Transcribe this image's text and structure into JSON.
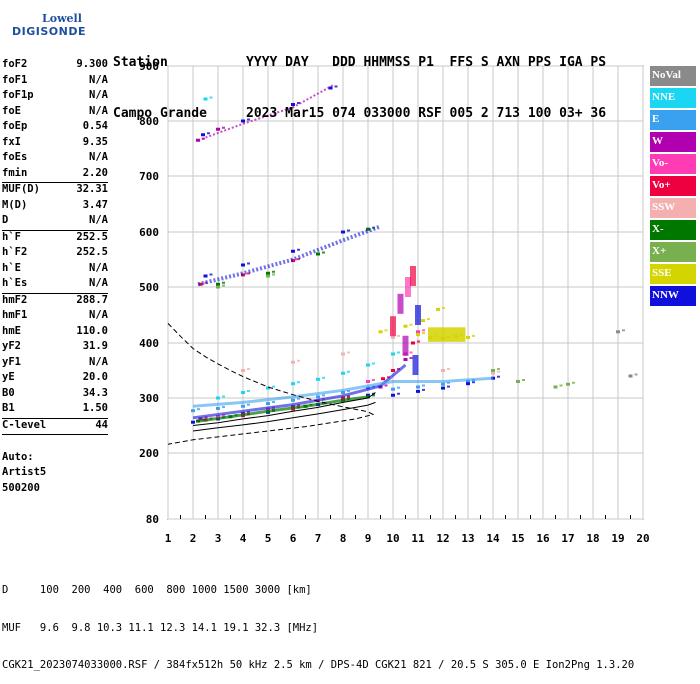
{
  "logo": {
    "line1": "Lowell",
    "line2": "DIGISONDE"
  },
  "header": {
    "line1": "Station          YYYY DAY   DDD HHMMSS P1  FFS S AXN PPS IGA PS",
    "line2": "Campo Grande     2023 Mar15 074 033000 RSF 005 2 713 100 03+ 36"
  },
  "params": [
    {
      "k": "foF2",
      "v": "9.300"
    },
    {
      "k": "foF1",
      "v": "N/A"
    },
    {
      "k": "foF1p",
      "v": "N/A"
    },
    {
      "k": "foE",
      "v": "N/A"
    },
    {
      "k": "foEp",
      "v": "0.54"
    },
    {
      "k": "fxI",
      "v": "9.35"
    },
    {
      "k": "foEs",
      "v": "N/A"
    },
    {
      "k": "fmin",
      "v": "2.20",
      "sep": true
    },
    {
      "k": "MUF(D)",
      "v": "32.31"
    },
    {
      "k": "M(D)",
      "v": "3.47"
    },
    {
      "k": "D",
      "v": "N/A",
      "sep": true
    },
    {
      "k": "h`F",
      "v": "252.5"
    },
    {
      "k": "h`F2",
      "v": "252.5"
    },
    {
      "k": "h`E",
      "v": "N/A"
    },
    {
      "k": "h`Es",
      "v": "N/A",
      "sep": true
    },
    {
      "k": "hmF2",
      "v": "288.7"
    },
    {
      "k": "hmF1",
      "v": "N/A"
    },
    {
      "k": "hmE",
      "v": "110.0"
    },
    {
      "k": "yF2",
      "v": "31.9"
    },
    {
      "k": "yF1",
      "v": "N/A"
    },
    {
      "k": "yE",
      "v": "20.0"
    },
    {
      "k": "B0",
      "v": "34.3"
    },
    {
      "k": "B1",
      "v": "1.50",
      "sep": true
    },
    {
      "k": "C-level",
      "v": "44",
      "sep": true
    },
    {
      "k": "",
      "v": ""
    },
    {
      "k": "Auto:",
      "v": ""
    },
    {
      "k": "Artist5",
      "v": ""
    },
    {
      "k": "500200",
      "v": ""
    }
  ],
  "legend": [
    {
      "label": "NoVal",
      "color": "#8a8a8a"
    },
    {
      "label": "NNE",
      "color": "#1ad6f2"
    },
    {
      "label": "E",
      "color": "#3aa0f0"
    },
    {
      "label": "W",
      "color": "#b000b0"
    },
    {
      "label": "Vo-",
      "color": "#ff3cb4"
    },
    {
      "label": "Vo+",
      "color": "#ee0040"
    },
    {
      "label": "SSW",
      "color": "#f4b0b0"
    },
    {
      "label": "X-",
      "color": "#007800"
    },
    {
      "label": "X+",
      "color": "#78b050"
    },
    {
      "label": "SSE",
      "color": "#d4d400"
    },
    {
      "label": "NNW",
      "color": "#1010dc"
    }
  ],
  "footer": {
    "line1": "D     100  200  400  600  800 1000 1500 3000 [km]",
    "line2": "MUF   9.6  9.8 10.3 11.1 12.3 14.1 19.1 32.3 [MHz]",
    "line3": "CGK21_2023074033000.RSF / 384fx512h 50 kHz 2.5 km / DPS-4D CGK21 821 / 20.5 S 305.0 E Ion2Png 1.3.20"
  },
  "chart_data": {
    "type": "scatter",
    "xlabel": "",
    "ylabel": "",
    "xlim": [
      1,
      20
    ],
    "ylim": [
      80,
      900
    ],
    "x_ticks": [
      1,
      2,
      3,
      4,
      5,
      6,
      7,
      8,
      9,
      10,
      11,
      12,
      13,
      14,
      15,
      16,
      17,
      18,
      19,
      20
    ],
    "y_ticks": [
      80,
      200,
      300,
      400,
      500,
      600,
      700,
      800,
      900
    ],
    "grid": true,
    "series": [
      {
        "name": "E",
        "color": "#3aa0f0",
        "values": [
          [
            2,
            277
          ],
          [
            3,
            281
          ],
          [
            4,
            285
          ],
          [
            5,
            290
          ],
          [
            6,
            296
          ],
          [
            7,
            302
          ],
          [
            8,
            310
          ],
          [
            9,
            318
          ],
          [
            10,
            316
          ],
          [
            11,
            320
          ],
          [
            12,
            325
          ],
          [
            13,
            330
          ]
        ]
      },
      {
        "name": "NNW",
        "color": "#1010dc",
        "values": [
          [
            2,
            256
          ],
          [
            3,
            262
          ],
          [
            4,
            268
          ],
          [
            5,
            274
          ],
          [
            6,
            280
          ],
          [
            7,
            288
          ],
          [
            8,
            296
          ],
          [
            9,
            305
          ],
          [
            10,
            305
          ],
          [
            11,
            312
          ],
          [
            12,
            318
          ],
          [
            13,
            326
          ],
          [
            14,
            336
          ],
          [
            2.5,
            520
          ],
          [
            4,
            540
          ],
          [
            6,
            565
          ],
          [
            8,
            600
          ],
          [
            2.4,
            775
          ],
          [
            4,
            800
          ],
          [
            6,
            830
          ],
          [
            7.5,
            860
          ]
        ]
      },
      {
        "name": "X-",
        "color": "#007800",
        "values": [
          [
            2.2,
            258
          ],
          [
            3.5,
            266
          ],
          [
            5,
            276
          ],
          [
            6.5,
            285
          ],
          [
            8,
            296
          ],
          [
            9,
            302
          ],
          [
            3,
            505
          ],
          [
            5,
            525
          ],
          [
            7,
            560
          ],
          [
            9,
            605
          ]
        ]
      },
      {
        "name": "W",
        "color": "#b000b0",
        "values": [
          [
            2.3,
            262
          ],
          [
            4,
            272
          ],
          [
            6,
            284
          ],
          [
            8,
            300
          ],
          [
            9.5,
            320
          ],
          [
            10.5,
            370
          ],
          [
            2.2,
            765
          ],
          [
            3,
            785
          ]
        ]
      },
      {
        "name": "Vo-",
        "color": "#ff3cb4",
        "values": [
          [
            3,
            266
          ],
          [
            5,
            280
          ],
          [
            7,
            295
          ],
          [
            9,
            330
          ],
          [
            10.5,
            380
          ],
          [
            11,
            420
          ]
        ]
      },
      {
        "name": "Vo+",
        "color": "#ee0040",
        "values": [
          [
            2.5,
            260
          ],
          [
            4,
            268
          ],
          [
            6,
            280
          ],
          [
            8,
            300
          ],
          [
            9.6,
            335
          ],
          [
            10,
            350
          ],
          [
            10.8,
            400
          ],
          [
            2.3,
            505
          ],
          [
            4,
            522
          ],
          [
            6,
            548
          ]
        ]
      },
      {
        "name": "SSE",
        "color": "#d4d400",
        "values": [
          [
            9.5,
            420
          ],
          [
            10.5,
            430
          ],
          [
            11,
            415
          ],
          [
            11.5,
            410
          ],
          [
            12,
            408
          ],
          [
            12.5,
            412
          ],
          [
            13,
            410
          ],
          [
            11.2,
            440
          ],
          [
            11.8,
            460
          ]
        ]
      },
      {
        "name": "NNE",
        "color": "#1ad6f2",
        "values": [
          [
            3,
            300
          ],
          [
            4,
            310
          ],
          [
            5,
            318
          ],
          [
            6,
            326
          ],
          [
            7,
            334
          ],
          [
            8,
            345
          ],
          [
            9,
            360
          ],
          [
            10,
            380
          ],
          [
            2.5,
            840
          ]
        ]
      },
      {
        "name": "SSW",
        "color": "#f4b0b0",
        "values": [
          [
            4,
            350
          ],
          [
            6,
            365
          ],
          [
            8,
            380
          ],
          [
            10,
            410
          ],
          [
            12,
            350
          ],
          [
            14,
            345
          ],
          [
            15,
            330
          ]
        ]
      },
      {
        "name": "X+",
        "color": "#78b050",
        "values": [
          [
            3,
            500
          ],
          [
            5,
            520
          ],
          [
            14,
            350
          ],
          [
            15,
            330
          ],
          [
            16.5,
            320
          ],
          [
            17,
            325
          ]
        ]
      },
      {
        "name": "NoVal",
        "color": "#8a8a8a",
        "values": [
          [
            19,
            420
          ],
          [
            19.5,
            340
          ]
        ]
      }
    ],
    "curves": {
      "profile_dashed": [
        [
          1,
          435
        ],
        [
          1.5,
          412
        ],
        [
          2,
          390
        ],
        [
          2.5,
          375
        ],
        [
          3,
          362
        ],
        [
          3.5,
          350
        ],
        [
          4,
          339
        ],
        [
          5,
          320
        ],
        [
          6,
          306
        ],
        [
          7,
          294
        ],
        [
          8,
          284
        ],
        [
          9,
          275
        ],
        [
          9.2,
          270
        ],
        [
          8.5,
          262
        ],
        [
          7.5,
          255
        ],
        [
          6.5,
          248
        ],
        [
          5,
          240
        ],
        [
          3.5,
          232
        ],
        [
          2,
          224
        ],
        [
          1,
          216
        ]
      ],
      "trace_solid": [
        [
          2,
          250
        ],
        [
          3,
          255
        ],
        [
          4,
          262
        ],
        [
          5,
          268
        ],
        [
          6,
          276
        ],
        [
          7,
          283
        ],
        [
          8,
          292
        ],
        [
          9,
          300
        ],
        [
          9.3,
          310
        ]
      ],
      "trace_lower": [
        [
          2,
          240
        ],
        [
          3,
          246
        ],
        [
          4,
          251
        ],
        [
          5,
          257
        ],
        [
          6,
          264
        ],
        [
          7,
          271
        ],
        [
          8,
          279
        ],
        [
          9,
          287
        ],
        [
          9.3,
          292
        ]
      ]
    }
  }
}
